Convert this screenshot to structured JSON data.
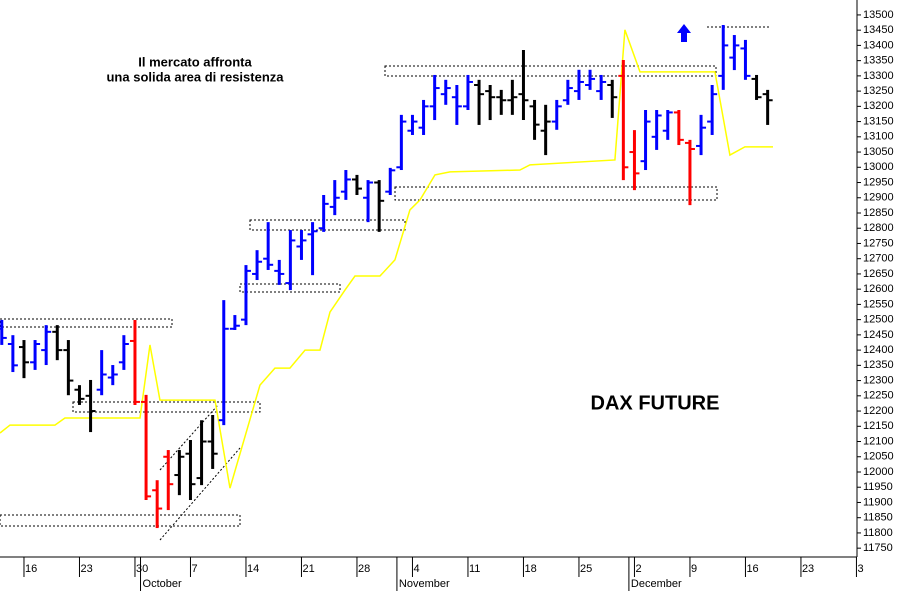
{
  "chart_data": {
    "type": "ohlc",
    "annotations": [
      "Il mercato affronta",
      "una solida area di resistenza",
      "DAX FUTURE"
    ],
    "ylim": [
      11721,
      13549
    ],
    "yticks": [
      11750,
      11800,
      11850,
      11900,
      11950,
      12000,
      12050,
      12100,
      12150,
      12200,
      12250,
      12300,
      12350,
      12400,
      12450,
      12500,
      12550,
      12600,
      12650,
      12700,
      12750,
      12800,
      12850,
      12900,
      12950,
      13000,
      13050,
      13100,
      13150,
      13200,
      13250,
      13300,
      13350,
      13400,
      13450,
      13500
    ],
    "xlim": [
      -2.16,
      75.05
    ],
    "xticks": [
      {
        "value": 0,
        "label": "16"
      },
      {
        "value": 5,
        "label": "23"
      },
      {
        "value": 10,
        "label": "30"
      },
      {
        "value": 15,
        "label": "7"
      },
      {
        "value": 20,
        "label": "14"
      },
      {
        "value": 25,
        "label": "21"
      },
      {
        "value": 30,
        "label": "28"
      },
      {
        "value": 35,
        "label": "4"
      },
      {
        "value": 40,
        "label": "11"
      },
      {
        "value": 45,
        "label": "18"
      },
      {
        "value": 50,
        "label": "25"
      },
      {
        "value": 55,
        "label": "2"
      },
      {
        "value": 60,
        "label": "9"
      },
      {
        "value": 65,
        "label": "16"
      },
      {
        "value": 70,
        "label": "23"
      },
      {
        "value": 75,
        "label": "3"
      }
    ],
    "month_ticks": [
      {
        "value": 10.5,
        "label": "October"
      },
      {
        "value": 33.6,
        "label": "November"
      },
      {
        "value": 54.5,
        "label": "December"
      }
    ],
    "x": [
      -2,
      -1,
      0,
      1,
      2,
      3,
      4,
      5,
      6,
      7,
      8,
      9,
      10,
      11,
      12,
      13,
      14,
      15,
      16,
      17,
      18,
      19,
      20,
      21,
      22,
      23,
      24,
      25,
      26,
      27,
      28,
      29,
      30,
      31,
      32,
      33,
      34,
      35,
      36,
      37,
      38,
      39,
      40,
      41,
      42,
      43,
      44,
      45,
      46,
      47,
      48,
      49,
      50,
      51,
      52,
      53,
      54,
      55,
      56,
      57,
      58,
      59,
      60,
      61,
      62,
      63,
      64,
      65,
      66,
      67
    ],
    "high": [
      12499,
      12449,
      12433,
      12433,
      12482,
      12482,
      12433,
      12285,
      12302,
      12400,
      12351,
      12449,
      12499,
      12253,
      11973,
      12072,
      12072,
      12105,
      12170,
      12187,
      12564,
      12515,
      12679,
      12728,
      12820,
      12696,
      12794,
      12794,
      12820,
      12909,
      12958,
      12991,
      12975,
      12958,
      12958,
      12998,
      13172,
      13172,
      13221,
      13303,
      13287,
      13270,
      13303,
      13287,
      13270,
      13254,
      13287,
      13385,
      13221,
      13205,
      13221,
      13287,
      13320,
      13320,
      13303,
      13287,
      13352,
      13122,
      13188,
      13188,
      13188,
      13188,
      13090,
      13172,
      13270,
      13467,
      13434,
      13418,
      13303,
      13254
    ],
    "low": [
      12417,
      12328,
      12308,
      12335,
      12351,
      12367,
      12252,
      12220,
      12131,
      12252,
      12285,
      12335,
      12220,
      11908,
      11816,
      11875,
      11924,
      11908,
      11957,
      12010,
      12154,
      12466,
      12482,
      12630,
      12663,
      12614,
      12597,
      12696,
      12646,
      12788,
      12843,
      12893,
      12909,
      12820,
      12788,
      12909,
      12991,
      13106,
      13106,
      13155,
      13205,
      13139,
      13188,
      13139,
      13155,
      13172,
      13172,
      13155,
      13090,
      13040,
      13123,
      13205,
      13221,
      13254,
      13221,
      13162,
      12958,
      12925,
      12991,
      13057,
      13090,
      13073,
      12876,
      13040,
      13106,
      13254,
      13319,
      13287,
      13221,
      13139
    ],
    "open": [
      12470,
      12420,
      12410,
      12360,
      12400,
      12460,
      12400,
      12270,
      12250,
      12270,
      12310,
      12360,
      12430,
      12230,
      11940,
      12050,
      11990,
      12060,
      11980,
      12100,
      12170,
      12470,
      12500,
      12650,
      12700,
      12660,
      12620,
      12740,
      12780,
      12800,
      12870,
      12920,
      12960,
      12900,
      12950,
      12920,
      13000,
      13120,
      13130,
      13200,
      13240,
      13230,
      13200,
      13270,
      13250,
      13230,
      13220,
      13240,
      13200,
      13120,
      13150,
      13220,
      13250,
      13270,
      13250,
      13270,
      13300,
      13050,
      13020,
      13100,
      13120,
      13180,
      13080,
      13070,
      13150,
      13300,
      13360,
      13390,
      13290,
      13240
    ],
    "close": [
      12440,
      12350,
      12360,
      12420,
      12460,
      12400,
      12300,
      12240,
      12200,
      12320,
      12320,
      12420,
      12230,
      11920,
      11880,
      11960,
      12050,
      11960,
      12100,
      12060,
      12470,
      12480,
      12660,
      12690,
      12680,
      12650,
      12760,
      12760,
      12790,
      12880,
      12900,
      12960,
      12930,
      12950,
      12890,
      12990,
      13150,
      13150,
      13200,
      13260,
      13260,
      13200,
      13280,
      13240,
      13230,
      13220,
      13230,
      13220,
      13140,
      13150,
      13200,
      13260,
      13280,
      13290,
      13280,
      13230,
      13000,
      12980,
      13150,
      13170,
      13180,
      13090,
      13060,
      13130,
      13240,
      13400,
      13400,
      13300,
      13230,
      13220
    ],
    "colors": [
      "#0000ff",
      "#0000ff",
      "#000000",
      "#0000ff",
      "#0000ff",
      "#000000",
      "#000000",
      "#000000",
      "#000000",
      "#0000ff",
      "#0000ff",
      "#0000ff",
      "#ff0000",
      "#ff0000",
      "#ff0000",
      "#ff0000",
      "#000000",
      "#000000",
      "#000000",
      "#000000",
      "#0000ff",
      "#0000ff",
      "#0000ff",
      "#0000ff",
      "#0000ff",
      "#0000ff",
      "#0000ff",
      "#0000ff",
      "#0000ff",
      "#0000ff",
      "#0000ff",
      "#0000ff",
      "#000000",
      "#0000ff",
      "#000000",
      "#0000ff",
      "#0000ff",
      "#0000ff",
      "#0000ff",
      "#0000ff",
      "#0000ff",
      "#0000ff",
      "#0000ff",
      "#000000",
      "#000000",
      "#000000",
      "#000000",
      "#000000",
      "#000000",
      "#000000",
      "#0000ff",
      "#0000ff",
      "#0000ff",
      "#0000ff",
      "#0000ff",
      "#000000",
      "#ff0000",
      "#ff0000",
      "#0000ff",
      "#0000ff",
      "#0000ff",
      "#ff0000",
      "#ff0000",
      "#0000ff",
      "#0000ff",
      "#0000ff",
      "#0000ff",
      "#0000ff",
      "#000000",
      "#000000"
    ],
    "line": {
      "color": "#ffff00",
      "x": [
        -2.16,
        -1.26,
        2.79,
        3.69,
        10.45,
        11.35,
        12.25,
        17.21,
        18.56,
        21.26,
        22.61,
        23.96,
        25.32,
        26.67,
        27.57,
        28.92,
        29.82,
        32.07,
        33.42,
        34.77,
        35.68,
        37.03,
        38.38,
        44.68,
        45.59,
        53.24,
        54.14,
        55.5,
        62.25,
        63.6,
        64.95,
        67.48
      ],
      "values": [
        12128,
        12154,
        12154,
        12177,
        12177,
        12417,
        12236,
        12236,
        11947,
        12285,
        12341,
        12341,
        12400,
        12400,
        12525,
        12597,
        12643,
        12643,
        12696,
        12860,
        12893,
        12975,
        12985,
        12991,
        13008,
        13024,
        13451,
        13313,
        13313,
        13040,
        13067,
        13067
      ]
    }
  }
}
